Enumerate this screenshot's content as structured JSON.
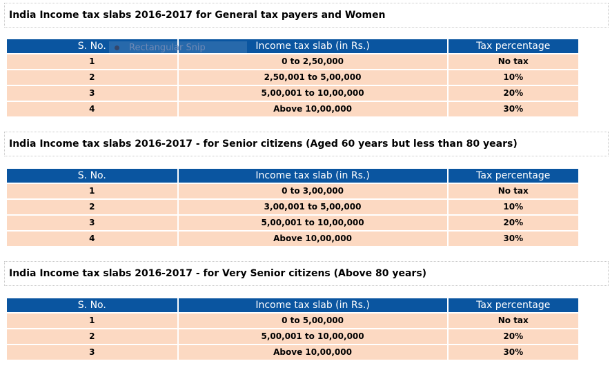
{
  "columns": [
    "S. No.",
    "Income tax slab (in Rs.)",
    "Tax percentage"
  ],
  "sections": [
    {
      "title": "India Income tax slabs 2016-2017 for General tax payers and Women",
      "rows": [
        [
          "1",
          "0 to 2,50,000",
          "No tax"
        ],
        [
          "2",
          "2,50,001 to 5,00,000",
          "10%"
        ],
        [
          "3",
          "5,00,001 to 10,00,000",
          "20%"
        ],
        [
          "4",
          "Above 10,00,000",
          "30%"
        ]
      ]
    },
    {
      "title": "India Income tax slabs 2016-2017 - for Senior citizens (Aged 60 years but less than 80 years)",
      "rows": [
        [
          "1",
          "0 to 3,00,000",
          "No tax"
        ],
        [
          "2",
          "3,00,001 to 5,00,000",
          "10%"
        ],
        [
          "3",
          "5,00,001 to 10,00,000",
          "20%"
        ],
        [
          "4",
          "Above 10,00,000",
          "30%"
        ]
      ]
    },
    {
      "title": "India Income tax slabs 2016-2017 - for Very Senior citizens (Above 80 years)",
      "rows": [
        [
          "1",
          "0 to 5,00,000",
          "No tax"
        ],
        [
          "2",
          "5,00,001 to 10,00,000",
          "20%"
        ],
        [
          "3",
          "Above 10,00,000",
          "30%"
        ]
      ]
    }
  ],
  "overlay": {
    "label": "Rectangular Snip"
  },
  "colors": {
    "header_bg": "#0a55a0",
    "cell_bg": "#fcd9c2"
  }
}
